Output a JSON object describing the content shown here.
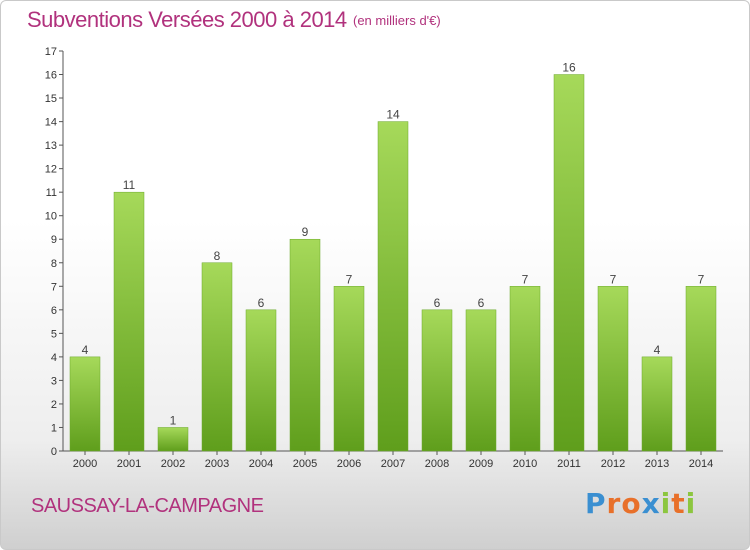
{
  "header": {
    "title": "Subventions Versées 2000 à 2014",
    "unit": "(en milliers d'€)"
  },
  "footer": {
    "commune": "SAUSSAY-LA-CAMPAGNE",
    "logo_letters": [
      "P",
      "r",
      "o",
      "x",
      "i",
      "t",
      "i"
    ],
    "logo_colors": [
      "#3a8fd1",
      "#e8702a",
      "#e8702a",
      "#3a8fd1",
      "#8cc63f",
      "#e8702a",
      "#8cc63f"
    ]
  },
  "chart_data": {
    "type": "bar",
    "categories": [
      "2000",
      "2001",
      "2002",
      "2003",
      "2004",
      "2005",
      "2006",
      "2007",
      "2008",
      "2009",
      "2010",
      "2011",
      "2012",
      "2013",
      "2014"
    ],
    "values": [
      4,
      11,
      1,
      8,
      6,
      9,
      7,
      14,
      6,
      6,
      7,
      16,
      7,
      4,
      7
    ],
    "ylim": [
      0,
      17
    ],
    "yticks": [
      0,
      1,
      2,
      3,
      4,
      5,
      6,
      7,
      8,
      9,
      10,
      11,
      12,
      13,
      14,
      15,
      16,
      17
    ],
    "grid": false,
    "bar_color_light": "#a6d95a",
    "bar_color_dark": "#5f9e1c"
  }
}
